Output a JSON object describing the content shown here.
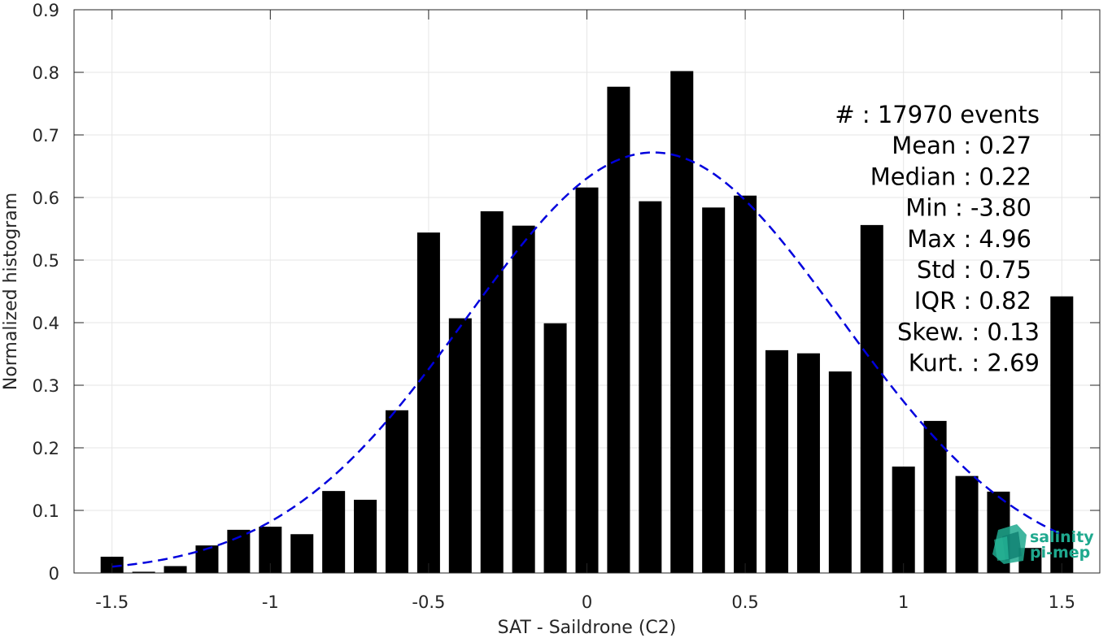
{
  "chart_data": {
    "type": "bar",
    "xlabel": "SAT - Saildrone (C2)",
    "ylabel": "Normalized histogram",
    "xlim": [
      -1.62,
      1.62
    ],
    "ylim": [
      0,
      0.9
    ],
    "xticks": [
      -1.5,
      -1,
      -0.5,
      0,
      0.5,
      1,
      1.5
    ],
    "xtick_labels": [
      "-1.5",
      "-1",
      "-0.5",
      "0",
      "0.5",
      "1",
      "1.5"
    ],
    "yticks": [
      0,
      0.1,
      0.2,
      0.3,
      0.4,
      0.5,
      0.6,
      0.7,
      0.8,
      0.9
    ],
    "ytick_labels": [
      "0",
      "0.1",
      "0.2",
      "0.3",
      "0.4",
      "0.5",
      "0.6",
      "0.7",
      "0.8",
      "0.9"
    ],
    "grid": true,
    "bar_color": "#000000",
    "bin_centers": [
      -1.5,
      -1.4,
      -1.3,
      -1.2,
      -1.1,
      -1.0,
      -0.9,
      -0.8,
      -0.7,
      -0.6,
      -0.5,
      -0.4,
      -0.3,
      -0.2,
      -0.1,
      0.0,
      0.1,
      0.2,
      0.3,
      0.4,
      0.5,
      0.6,
      0.7,
      0.8,
      0.9,
      1.0,
      1.1,
      1.2,
      1.3,
      1.4,
      1.5
    ],
    "values": [
      0.026,
      0.002,
      0.011,
      0.044,
      0.069,
      0.074,
      0.062,
      0.131,
      0.117,
      0.26,
      0.544,
      0.407,
      0.578,
      0.555,
      0.399,
      0.616,
      0.777,
      0.594,
      0.802,
      0.584,
      0.603,
      0.356,
      0.351,
      0.322,
      0.556,
      0.17,
      0.243,
      0.155,
      0.13,
      0.04,
      0.442
    ],
    "fit_curve": {
      "type": "gaussian",
      "style": "dashed",
      "color": "#0000dd",
      "mean": 0.21,
      "std": 0.59,
      "peak": 0.672,
      "x_range": [
        -1.5,
        1.5
      ]
    },
    "stats": [
      "#  : 17970 events",
      "Mean : 0.27",
      "Median : 0.22",
      "Min : -3.80",
      "Max : 4.96",
      "Std : 0.75",
      "IQR : 0.82",
      "Skew. : 0.13",
      "Kurt. : 2.69"
    ]
  },
  "logo": {
    "line1": "salinity",
    "line2": "pi-mep",
    "color": "#1fa98e"
  }
}
